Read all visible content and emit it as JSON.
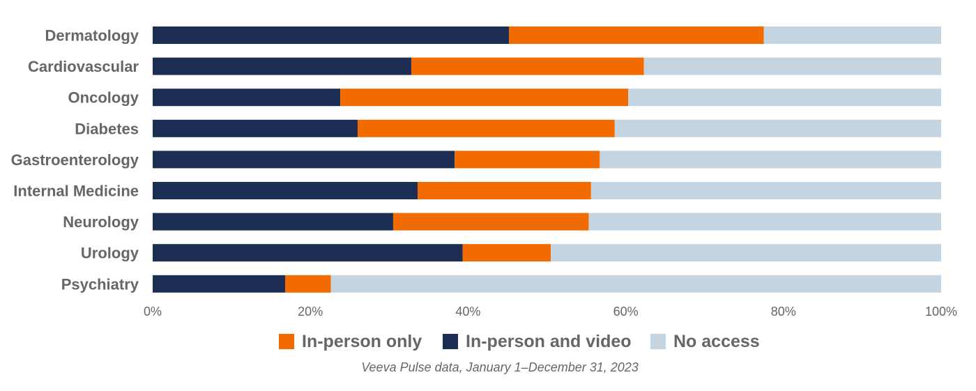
{
  "chart_data": {
    "type": "bar",
    "orientation": "horizontal",
    "stacked": true,
    "categories": [
      "Dermatology",
      "Cardiovascular",
      "Oncology",
      "Diabetes",
      "Gastroenterology",
      "Internal Medicine",
      "Neurology",
      "Urology",
      "Psychiatry"
    ],
    "series": [
      {
        "name": "In-person and video",
        "color": "#1c2e54",
        "values": [
          45.2,
          32.8,
          23.8,
          26.0,
          38.3,
          33.6,
          30.5,
          39.3,
          16.8
        ]
      },
      {
        "name": "In-person only",
        "color": "#f26b00",
        "values": [
          32.3,
          29.5,
          36.5,
          32.6,
          18.4,
          22.0,
          24.8,
          11.2,
          5.8
        ]
      },
      {
        "name": "No access",
        "color": "#c5d4e1",
        "values": [
          22.5,
          37.7,
          39.7,
          41.4,
          43.3,
          44.4,
          44.7,
          49.5,
          77.4
        ]
      }
    ],
    "xlim": [
      0,
      100
    ],
    "x_ticks": [
      "0%",
      "20%",
      "40%",
      "60%",
      "80%",
      "100%"
    ],
    "legend": {
      "placement": "bottom",
      "order": [
        "In-person only",
        "In-person and video",
        "No access"
      ]
    },
    "source": "Veeva Pulse data, January 1–December 31, 2023",
    "grid": false
  }
}
